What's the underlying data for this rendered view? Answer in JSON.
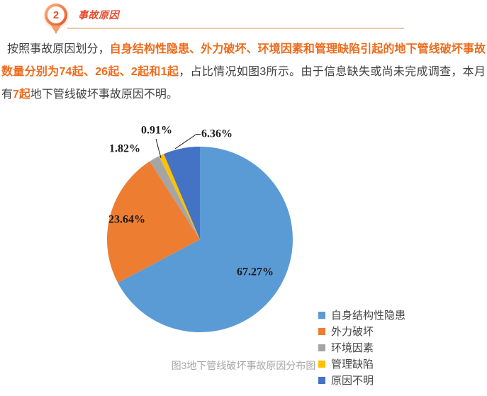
{
  "header": {
    "number": "2",
    "title": "事故原因"
  },
  "paragraph": {
    "normal1": "按照事故原因划分，",
    "highlight1": "自身结构性隐患、外力破坏、环境因素和管理缺陷引起的地下管线破坏事故数量分别为74起、26起、2起和1起",
    "normal2": "，占比情况如图3所示。由于信息缺失或尚未完成调查，本月有",
    "highlight2": "7起",
    "normal3": "地下管线破坏事故原因不明。"
  },
  "chart_data": {
    "type": "pie",
    "title": "图3地下管线破坏事故原因分布图",
    "categories": [
      "自身结构性隐患",
      "外力破坏",
      "环境因素",
      "管理缺陷",
      "原因不明"
    ],
    "values": [
      67.27,
      23.64,
      1.82,
      0.91,
      6.36
    ],
    "counts": [
      74,
      26,
      2,
      1,
      7
    ],
    "labels": [
      "67.27%",
      "23.64%",
      "1.82%",
      "0.91%",
      "6.36%"
    ],
    "colors": [
      "#5B9BD5",
      "#ED7D31",
      "#A5A5A5",
      "#FFC000",
      "#4472C4"
    ],
    "legend_position": "right",
    "start_angle_deg": 0,
    "direction": "clockwise"
  },
  "caption": "图3地下管线破坏事故原因分布图"
}
